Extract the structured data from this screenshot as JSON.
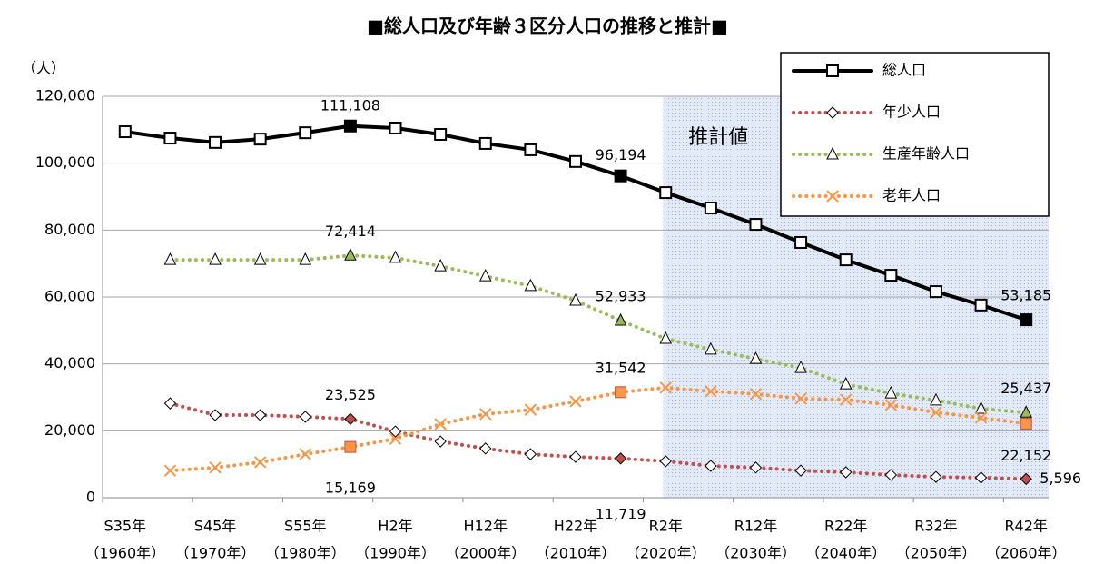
{
  "chart_data": {
    "type": "line",
    "title": "■総人口及び年齢３区分人口の推移と推計■",
    "y_label": "（人）",
    "annotation": "推計値",
    "forecast_start": 12,
    "categories": [
      "S35年",
      null,
      "S45年",
      null,
      "S55年",
      null,
      "H2年",
      null,
      "H12年",
      null,
      "H22年",
      null,
      "R2年",
      null,
      "R12年",
      null,
      "R22年",
      null,
      "R32年",
      null,
      "R42年"
    ],
    "category_subtitles": [
      "（1960年）",
      null,
      "（1970年）",
      null,
      "（1980年）",
      null,
      "（1990年）",
      null,
      "（2000年）",
      null,
      "（2010年）",
      null,
      "（2020年）",
      null,
      "（2030年）",
      null,
      "（2040年）",
      null,
      "（2050年）",
      null,
      "（2060年）"
    ],
    "ylim": [
      0,
      120000
    ],
    "yticks": [
      0,
      {
        "value": 20000,
        "label": "20,000"
      },
      {
        "value": 40000,
        "label": "40,000"
      },
      {
        "value": 60000,
        "label": "60,000"
      },
      {
        "value": 80000,
        "label": "80,000"
      },
      {
        "value": 100000,
        "label": "100,000"
      },
      {
        "value": 120000,
        "label": "120,000"
      }
    ],
    "grid": true,
    "legend": "top-right",
    "series": [
      {
        "name": "総人口",
        "color": "#000000",
        "marker": "square",
        "values": [
          109400,
          107500,
          106200,
          107200,
          109100,
          111108,
          110500,
          108600,
          105900,
          104000,
          100500,
          96194,
          91200,
          86600,
          81700,
          76300,
          71100,
          66500,
          61600,
          57600,
          53185
        ],
        "value_labels": [
          null,
          null,
          null,
          null,
          null,
          "111,108",
          null,
          null,
          null,
          null,
          null,
          "96,194",
          null,
          null,
          null,
          null,
          null,
          null,
          null,
          null,
          "53,185"
        ]
      },
      {
        "name": "年少人口",
        "color": "#c0504d",
        "marker": "diamond",
        "values": [
          null,
          28200,
          24700,
          24700,
          24200,
          23525,
          19800,
          16800,
          14700,
          13000,
          12200,
          11719,
          10900,
          9500,
          9000,
          8100,
          7600,
          6800,
          6200,
          6000,
          5596
        ],
        "value_labels": [
          null,
          null,
          null,
          null,
          null,
          "23,525",
          null,
          null,
          null,
          null,
          null,
          "11,719",
          null,
          null,
          null,
          null,
          null,
          null,
          null,
          null,
          "5,596"
        ]
      },
      {
        "name": "生産年齢人口",
        "color": "#9bbb59",
        "marker": "triangle",
        "values": [
          null,
          71100,
          71100,
          71100,
          71100,
          72414,
          71700,
          69200,
          66200,
          63300,
          58900,
          52933,
          47500,
          44300,
          41500,
          38800,
          33900,
          31200,
          29100,
          26600,
          25437
        ],
        "value_labels": [
          null,
          null,
          null,
          null,
          null,
          "72,414",
          null,
          null,
          null,
          null,
          null,
          "52,933",
          null,
          null,
          null,
          null,
          null,
          null,
          null,
          null,
          "25,437"
        ]
      },
      {
        "name": "老年人口",
        "color": "#f79646",
        "marker": "cross",
        "values": [
          null,
          8100,
          9000,
          10600,
          13000,
          15169,
          17600,
          22000,
          25000,
          26300,
          28800,
          31542,
          32900,
          31800,
          31000,
          29600,
          29300,
          27700,
          25500,
          23900,
          22152
        ],
        "value_labels": [
          null,
          null,
          null,
          null,
          null,
          "15,169",
          null,
          null,
          null,
          null,
          null,
          "31,542",
          null,
          null,
          null,
          null,
          null,
          null,
          null,
          null,
          "22,152"
        ]
      }
    ]
  }
}
